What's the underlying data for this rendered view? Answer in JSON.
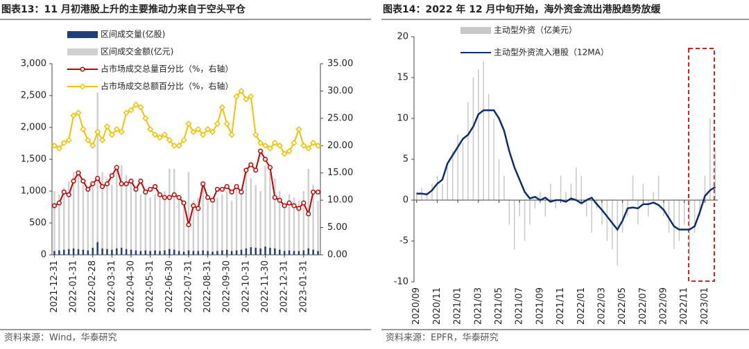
{
  "chart_data": [
    {
      "type": "bar-line",
      "title": "图表13：11 月初港股上升的主要推动力来自于空头平仓",
      "source": "资料来源：Wind，华泰研究",
      "categories": [
        "2021-12-31",
        null,
        null,
        null,
        "2022-01-31",
        null,
        null,
        null,
        "2022-02-28",
        null,
        null,
        null,
        "2022-03-31",
        null,
        null,
        null,
        "2022-04-30",
        null,
        null,
        null,
        "2022-05-31",
        null,
        null,
        null,
        "2022-06-30",
        null,
        null,
        null,
        "2022-07-31",
        null,
        null,
        null,
        "2022-08-31",
        null,
        null,
        null,
        "2022-09-30",
        null,
        null,
        null,
        "2022-10-31",
        null,
        null,
        null,
        "2022-11-30",
        null,
        null,
        null,
        "2022-12-31",
        null,
        null,
        null,
        "2023-01-31",
        null,
        null,
        null
      ],
      "ylim": [
        0,
        3000
      ],
      "yticks": [
        0,
        500,
        {
          "value": 1000,
          "label": "1,000"
        },
        {
          "value": 1500,
          "label": "1,500"
        },
        {
          "value": 2000,
          "label": "2,000"
        },
        {
          "value": 2500,
          "label": "2,500"
        },
        {
          "value": 3000,
          "label": "3,000"
        }
      ],
      "y2lim": [
        0,
        35
      ],
      "y2ticks": [
        {
          "value": 0,
          "label": "0.00"
        },
        {
          "value": 5,
          "label": "5.00"
        },
        {
          "value": 10,
          "label": "10.00"
        },
        {
          "value": 15,
          "label": "15.00"
        },
        {
          "value": 20,
          "label": "20.00"
        },
        {
          "value": 25,
          "label": "25.00"
        },
        {
          "value": 30,
          "label": "30.00"
        },
        {
          "value": 35,
          "label": "35.00"
        }
      ],
      "series": [
        {
          "name": "区间成交金额(亿元)",
          "type": "bar",
          "color": "#d0d0d0",
          "values": [
            1000,
            950,
            1050,
            1150,
            1300,
            1250,
            1100,
            1000,
            1150,
            2550,
            1300,
            1200,
            1100,
            1350,
            1400,
            1250,
            1200,
            1000,
            950,
            1000,
            900,
            950,
            900,
            1000,
            1350,
            1350,
            900,
            800,
            1300,
            850,
            900,
            1050,
            850,
            800,
            900,
            950,
            1000,
            850,
            1050,
            1000,
            1350,
            1200,
            1100,
            1000,
            1400,
            1300,
            1200,
            1000,
            800,
            950,
            900,
            850,
            1000,
            1350,
            1100,
            850
          ]
        },
        {
          "name": "区间成交量(亿股)",
          "type": "bar",
          "color": "#1f3f7a",
          "values": [
            60,
            70,
            80,
            90,
            100,
            90,
            80,
            70,
            110,
            200,
            100,
            90,
            80,
            100,
            110,
            90,
            80,
            70,
            60,
            70,
            60,
            70,
            60,
            70,
            90,
            80,
            60,
            50,
            70,
            60,
            60,
            70,
            60,
            50,
            60,
            70,
            80,
            60,
            70,
            80,
            100,
            120,
            110,
            100,
            130,
            110,
            100,
            80,
            60,
            70,
            60,
            60,
            70,
            100,
            80,
            60
          ]
        },
        {
          "name": "占市场成交总量百分比（%，右轴）",
          "type": "line",
          "marker": "circle",
          "axis": "y2",
          "color": "#c00000",
          "values": [
            9,
            9.5,
            11.5,
            11,
            13.5,
            15,
            13.5,
            12,
            13,
            14,
            12.5,
            13,
            14.5,
            16,
            13,
            13,
            13.5,
            12,
            13.5,
            11.5,
            12,
            12.5,
            11,
            10.5,
            10.5,
            11,
            10.5,
            9.5,
            5.5,
            9,
            8.5,
            13,
            10.5,
            10,
            12,
            12,
            12.5,
            11.5,
            12.5,
            11.5,
            15.5,
            16.5,
            15.5,
            19,
            17.5,
            16,
            10.5,
            10,
            9,
            9.5,
            9,
            8.5,
            9.5,
            7.5,
            11.5,
            11.5
          ]
        },
        {
          "name": "占市场成交总额百分比（%，右轴）",
          "type": "line",
          "marker": "diamond",
          "axis": "y2",
          "color": "#f2c200",
          "values": [
            20,
            19.5,
            20.5,
            21,
            25.5,
            26,
            23,
            21,
            20,
            22.5,
            21,
            23.5,
            22,
            23,
            22.5,
            26,
            26.5,
            27.5,
            27,
            25,
            23,
            22,
            21.5,
            22,
            21,
            20,
            20,
            21,
            24,
            22.5,
            23,
            22,
            23,
            22.5,
            24,
            27,
            24,
            22,
            29,
            30,
            28.5,
            29,
            22,
            20.5,
            20,
            19.5,
            20.5,
            20,
            18.5,
            19,
            20.5,
            23,
            20,
            19.5,
            20.5,
            20
          ]
        }
      ]
    },
    {
      "type": "bar-line",
      "title": "图表14：2022 年 12 月中旬开始，海外资金流出港股趋势放缓",
      "source": "资料来源：EPFR，华泰研究",
      "categories": [
        "2020/09",
        null,
        null,
        null,
        "2020/11",
        null,
        null,
        null,
        "2021/01",
        null,
        null,
        null,
        "2021/03",
        null,
        null,
        null,
        "2021/05",
        null,
        null,
        null,
        "2021/07",
        null,
        null,
        null,
        "2021/09",
        null,
        null,
        null,
        "2021/11",
        null,
        null,
        null,
        "2022/01",
        null,
        null,
        null,
        "2022/03",
        null,
        null,
        null,
        "2022/05",
        null,
        null,
        null,
        "2022/07",
        null,
        null,
        null,
        "2022/09",
        null,
        null,
        null,
        "2022/11",
        null,
        null,
        null,
        "2023/01",
        null,
        null
      ],
      "ylim": [
        -10,
        20
      ],
      "yticks": [
        -10,
        -5,
        0,
        5,
        10,
        15,
        20
      ],
      "series": [
        {
          "name": "主动型外资（亿美元）",
          "type": "bar",
          "color": "#c8c8c8",
          "values": [
            1,
            1.5,
            1,
            2,
            3,
            2,
            4,
            6,
            8,
            7,
            12,
            15,
            16,
            17,
            13,
            10,
            5,
            3,
            -3,
            -6,
            -2,
            -5,
            -3,
            -1,
            1,
            -2,
            2,
            -1,
            3,
            1,
            2,
            4,
            3,
            -2,
            -4,
            -1,
            -3,
            -5,
            -6,
            -8,
            -4,
            -2,
            3,
            -3,
            2,
            -2,
            1,
            3,
            -2,
            -4,
            -6,
            -5,
            -3,
            -7,
            -4,
            -2,
            3,
            10,
            6
          ]
        },
        {
          "name": "主动型外资流入港股（12MA）",
          "type": "line",
          "color": "#0d2c6c",
          "values": [
            0.8,
            0.8,
            0.7,
            1.2,
            2,
            2.5,
            4.5,
            5.5,
            6.5,
            7.5,
            8,
            9,
            10.5,
            11,
            11,
            11,
            10,
            8.5,
            6,
            4,
            2.5,
            1,
            0.2,
            0.4,
            0,
            0.3,
            -0.2,
            0,
            0,
            -0.2,
            0.2,
            0,
            -0.4,
            0,
            0.3,
            -0.5,
            -1.2,
            -2,
            -2.8,
            -3.6,
            -2.5,
            -1,
            -0.9,
            -1,
            -0.5,
            -0.5,
            -0.3,
            -0.6,
            -1.2,
            -2.2,
            -3.2,
            -3.6,
            -3.6,
            -3.6,
            -3.2,
            -1.5,
            0.5,
            1.2,
            1.6
          ]
        }
      ]
    }
  ]
}
